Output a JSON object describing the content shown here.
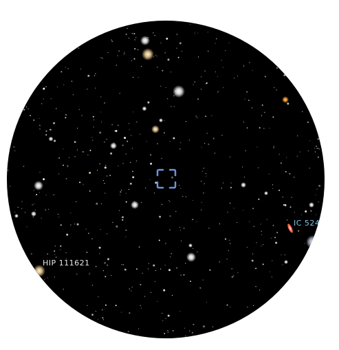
{
  "sky_view": {
    "background_color": "#000000",
    "labels": {
      "hip_star": "HIP 111621",
      "ic_object": "IC 524"
    },
    "label_colors": {
      "hip_star": "#e8e8e8",
      "ic_object": "#7fc6e6"
    },
    "reticle_color": "#6f93d8",
    "reticle_icon": "selection-reticle-icon"
  }
}
